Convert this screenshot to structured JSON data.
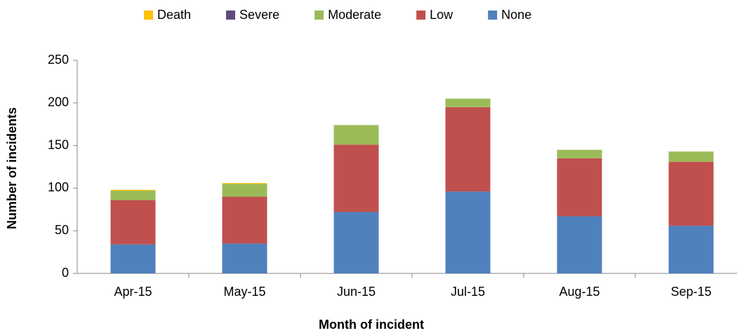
{
  "chart_data": {
    "type": "stacked_bar",
    "categories": [
      "Apr-15",
      "May-15",
      "Jun-15",
      "Jul-15",
      "Aug-15",
      "Sep-15"
    ],
    "series": [
      {
        "name": "Death",
        "color": "#ffc000",
        "values": [
          1,
          1,
          0,
          0,
          0,
          0
        ]
      },
      {
        "name": "Severe",
        "color": "#604a7b",
        "values": [
          0,
          0,
          0,
          0,
          0,
          0
        ]
      },
      {
        "name": "Moderate",
        "color": "#9bbb59",
        "values": [
          11,
          15,
          23,
          10,
          10,
          12
        ]
      },
      {
        "name": "Low",
        "color": "#c0504d",
        "values": [
          52,
          55,
          79,
          99,
          68,
          75
        ]
      },
      {
        "name": "None",
        "color": "#4f81bd",
        "values": [
          34,
          35,
          72,
          96,
          67,
          56
        ]
      }
    ],
    "ylim": [
      0,
      250
    ],
    "yticks": [
      0,
      50,
      100,
      150,
      200,
      250
    ],
    "y_label": "Number of incidents",
    "x_label": "Month of incident",
    "grid": false,
    "legend": "top"
  }
}
